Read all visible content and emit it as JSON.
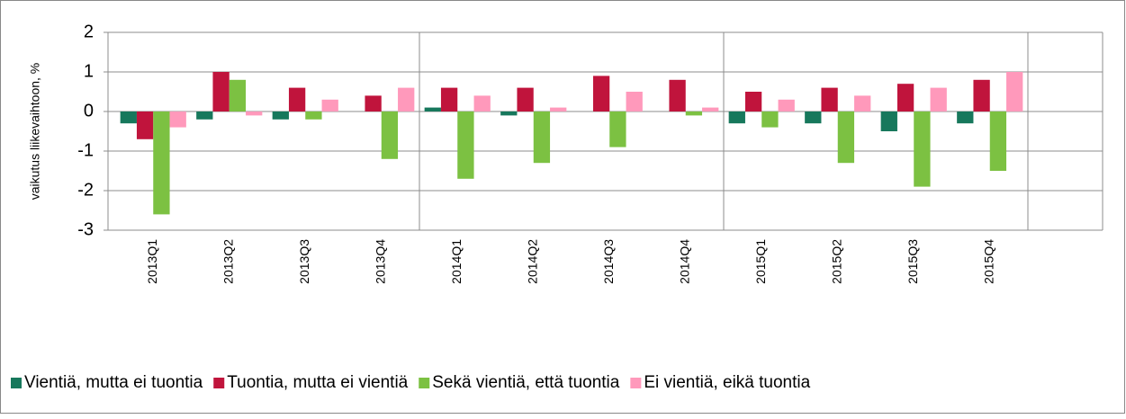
{
  "chart_data": {
    "type": "bar",
    "y_label": "vaikutus liikevaihtoon, %",
    "categories": [
      "2013Q1",
      "2013Q2",
      "2013Q3",
      "2013Q4",
      "2014Q1",
      "2014Q2",
      "2014Q3",
      "2014Q4",
      "2015Q1",
      "2015Q2",
      "2015Q3",
      "2015Q4"
    ],
    "series": [
      {
        "name": "Vientiä, mutta ei tuontia",
        "color": "#17785c",
        "values": [
          -0.3,
          -0.2,
          -0.2,
          0,
          0.1,
          -0.1,
          0,
          0,
          -0.3,
          -0.3,
          -0.5,
          -0.3
        ]
      },
      {
        "name": "Tuontia, mutta ei vientiä",
        "color": "#c0143c",
        "values": [
          -0.7,
          1.0,
          0.6,
          0.4,
          0.6,
          0.6,
          0.9,
          0.8,
          0.5,
          0.6,
          0.7,
          0.8
        ]
      },
      {
        "name": "Sekä vientiä, että tuontia",
        "color": "#7cc142",
        "values": [
          -2.6,
          0.8,
          -0.2,
          -1.2,
          -1.7,
          -1.3,
          -0.9,
          -0.1,
          -0.4,
          -1.3,
          -1.9,
          -1.5
        ]
      },
      {
        "name": "Ei vientiä, eikä tuontia",
        "color": "#ff99bb",
        "values": [
          -0.4,
          -0.1,
          0.3,
          0.6,
          0.4,
          0.1,
          0.5,
          0.1,
          0.3,
          0.4,
          0.6,
          1.0
        ]
      }
    ],
    "ylim": [
      -3,
      2
    ],
    "yticks": [
      -3,
      -2,
      -1,
      0,
      1,
      2
    ],
    "grid": true,
    "negative_tick_color": "#e00000",
    "legend": "bottom"
  }
}
